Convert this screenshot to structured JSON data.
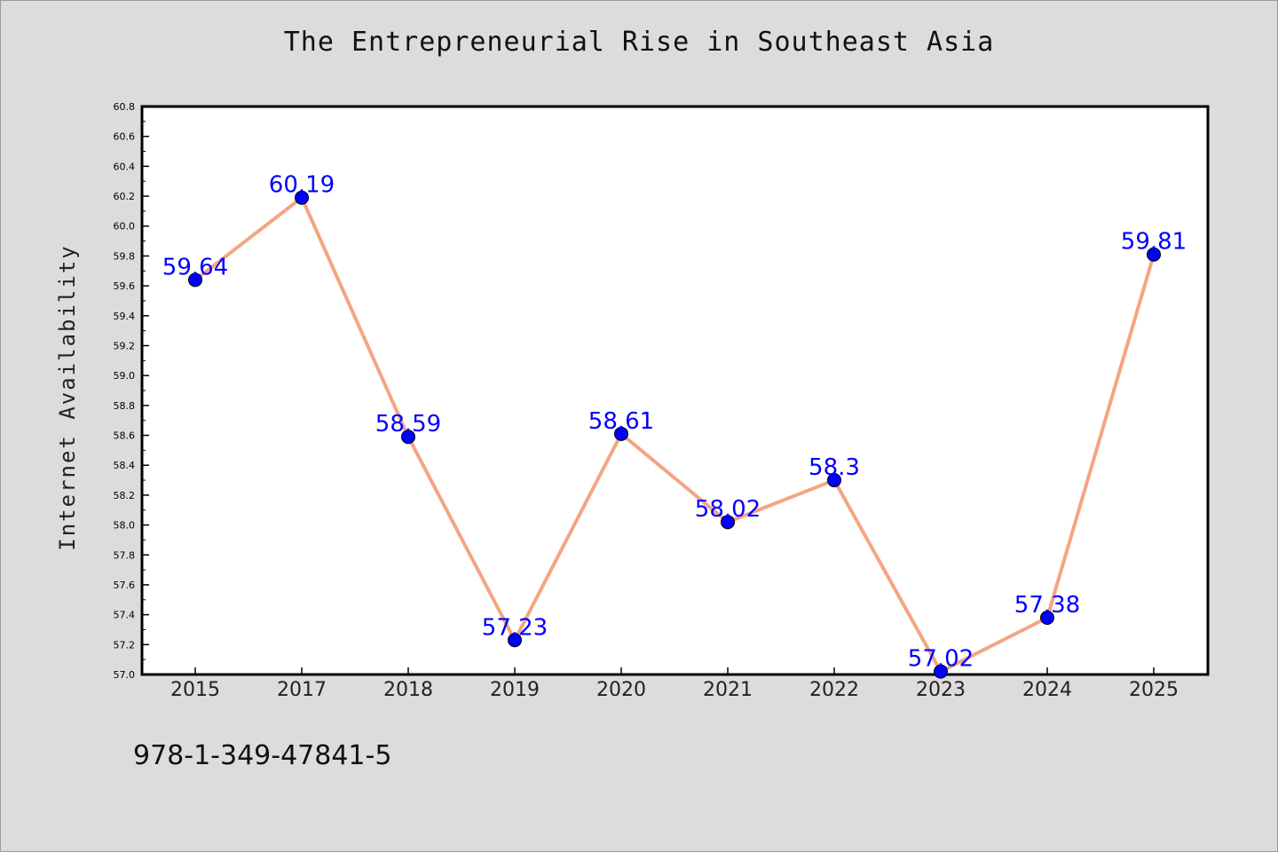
{
  "chart_data": {
    "type": "line",
    "title": "The Entrepreneurial Rise in Southeast Asia",
    "xlabel": "",
    "ylabel": "Internet Availability",
    "categories": [
      "2015",
      "2017",
      "2018",
      "2019",
      "2020",
      "2021",
      "2022",
      "2023",
      "2024",
      "2025"
    ],
    "series": [
      {
        "values": [
          59.64,
          60.19,
          58.59,
          57.23,
          58.61,
          58.02,
          58.3,
          57.02,
          57.38,
          59.81
        ],
        "labels": [
          "59.64",
          "60.19",
          "58.59",
          "57.23",
          "58.61",
          "58.02",
          "58.3",
          "57.02",
          "57.38",
          "59.81"
        ],
        "line_color": "#f4a582",
        "marker_color": "#0000ff",
        "label_color": "#0000ff"
      }
    ],
    "ylim": [
      57.0,
      60.8
    ],
    "yticks": [
      "57.0",
      "57.2",
      "57.4",
      "57.6",
      "57.8",
      "58.0",
      "58.2",
      "58.4",
      "58.6",
      "58.8",
      "59.0",
      "59.2",
      "59.4",
      "59.6",
      "59.8",
      "60.0",
      "60.2",
      "60.4",
      "60.6",
      "60.8"
    ],
    "grid": false,
    "legend": "none"
  },
  "footer_text": "978-1-349-47841-5"
}
